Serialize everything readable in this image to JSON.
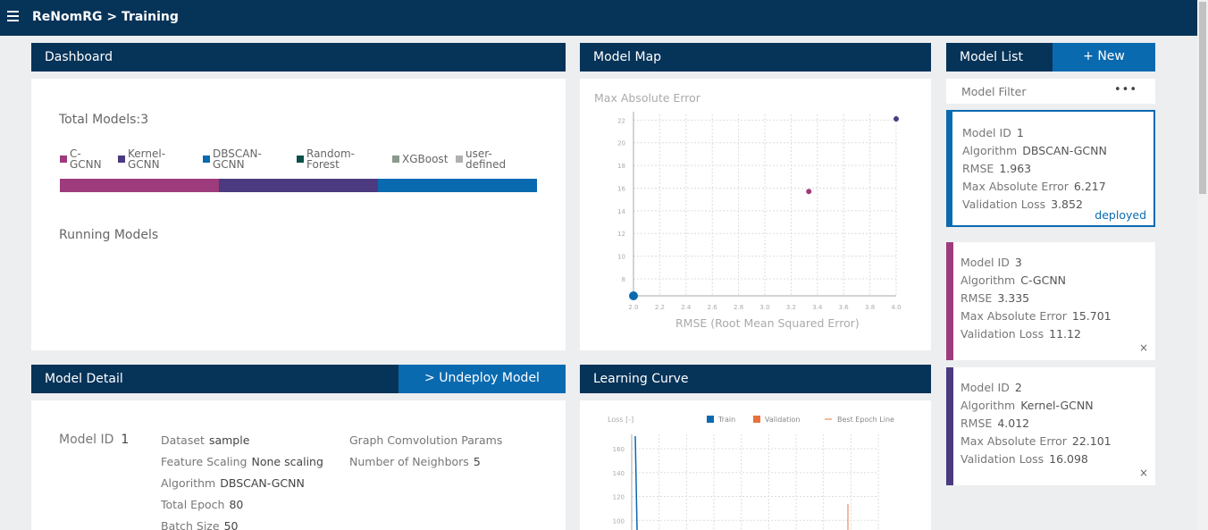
{
  "header": {
    "title": "ReNomRG > Training",
    "menu_icon": "hamburger-menu-icon"
  },
  "dashboard": {
    "title": "Dashboard",
    "total_models": "Total Models:3",
    "legend": [
      {
        "label": "C-\nGCNN",
        "color": "#9e3b7d"
      },
      {
        "label": "Kernel-\nGCNN",
        "color": "#4b3a80"
      },
      {
        "label": "DBSCAN-\nGCNN",
        "color": "#0a6ab0"
      },
      {
        "label": "Random-\nForest",
        "color": "#0b4f4a"
      },
      {
        "label": "XGBoost",
        "color": "#8a9a8e"
      },
      {
        "label": "user-\ndefined",
        "color": "#b0b0b0"
      }
    ],
    "distribution": [
      {
        "model": "C-GCNN",
        "count": 1,
        "color": "#9e3b7d"
      },
      {
        "model": "Kernel-GCNN",
        "count": 1,
        "color": "#4b3a80"
      },
      {
        "model": "DBSCAN-GCNN",
        "count": 1,
        "color": "#0a6ab0"
      }
    ],
    "running_models": "Running Models"
  },
  "model_map": {
    "title": "Model Map",
    "ylabel": "Max Absolute Error",
    "xlabel": "RMSE (Root Mean Squared Error)",
    "xticks": [
      "2.0",
      "2.2",
      "2.4",
      "2.6",
      "2.8",
      "3.0",
      "3.2",
      "3.4",
      "3.6",
      "3.8",
      "4.0"
    ],
    "yticks": [
      "22",
      "20",
      "18",
      "16",
      "14",
      "12",
      "10",
      "8"
    ]
  },
  "chart_data": [
    {
      "type": "scatter",
      "title": "Model Map",
      "xlabel": "RMSE (Root Mean Squared Error)",
      "ylabel": "Max Absolute Error",
      "xlim": [
        2.0,
        4.0
      ],
      "ylim": [
        6.5,
        22.5
      ],
      "points": [
        {
          "x": 1.963,
          "y": 6.217,
          "color": "#0a6ab0",
          "size": "large"
        },
        {
          "x": 3.335,
          "y": 15.701,
          "color": "#9e3b7d",
          "size": "small"
        },
        {
          "x": 4.012,
          "y": 22.101,
          "color": "#4b3a80",
          "size": "small"
        }
      ]
    },
    {
      "type": "line",
      "title": "Learning Curve",
      "ylabel": "Loss [-]",
      "ylim": [
        92,
        172
      ],
      "yticks": [
        "160",
        "140",
        "120",
        "100"
      ],
      "series": [
        {
          "name": "Train",
          "color": "#0a6ab0"
        },
        {
          "name": "Validation",
          "color": "#e8713c"
        },
        {
          "name": "Best Epoch Line",
          "color": "#e8713c"
        }
      ]
    }
  ],
  "model_list": {
    "title": "Model List",
    "new_button": "+ New",
    "filter_label": "Model Filter",
    "filter_more": "•••",
    "field_labels": {
      "id": "Model ID",
      "algorithm": "Algorithm",
      "rmse": "RMSE",
      "mae": "Max Absolute Error",
      "val_loss": "Validation Loss"
    },
    "deployed_label": "deployed",
    "close_icon": "×",
    "models": [
      {
        "id": "1",
        "algorithm": "DBSCAN-GCNN",
        "rmse": "1.963",
        "mae": "6.217",
        "val_loss": "3.852",
        "color": "#0a6ab0"
      },
      {
        "id": "3",
        "algorithm": "C-GCNN",
        "rmse": "3.335",
        "mae": "15.701",
        "val_loss": "11.12",
        "color": "#9e3b7d"
      },
      {
        "id": "2",
        "algorithm": "Kernel-GCNN",
        "rmse": "4.012",
        "mae": "22.101",
        "val_loss": "16.098",
        "color": "#4b3a80"
      }
    ]
  },
  "model_detail": {
    "title": "Model Detail",
    "undeploy_button": "> Undeploy Model",
    "model_id_label": "Model ID",
    "model_id": "1",
    "fields": [
      {
        "label": "Dataset",
        "value": "sample"
      },
      {
        "label": "Feature Scaling",
        "value": "None scaling"
      },
      {
        "label": "Algorithm",
        "value": "DBSCAN-GCNN"
      },
      {
        "label": "Total Epoch",
        "value": "80"
      },
      {
        "label": "Batch Size",
        "value": "50"
      }
    ],
    "params_title": "Graph Comvolution Params",
    "params": [
      {
        "label": "Number of Neighbors",
        "value": "5"
      }
    ]
  },
  "learning_curve": {
    "title": "Learning Curve",
    "ylabel": "Loss [-]",
    "legend_train": "Train",
    "legend_validation": "Validation",
    "legend_best": "Best Epoch Line",
    "yticks": [
      "160",
      "140",
      "120",
      "100"
    ]
  }
}
